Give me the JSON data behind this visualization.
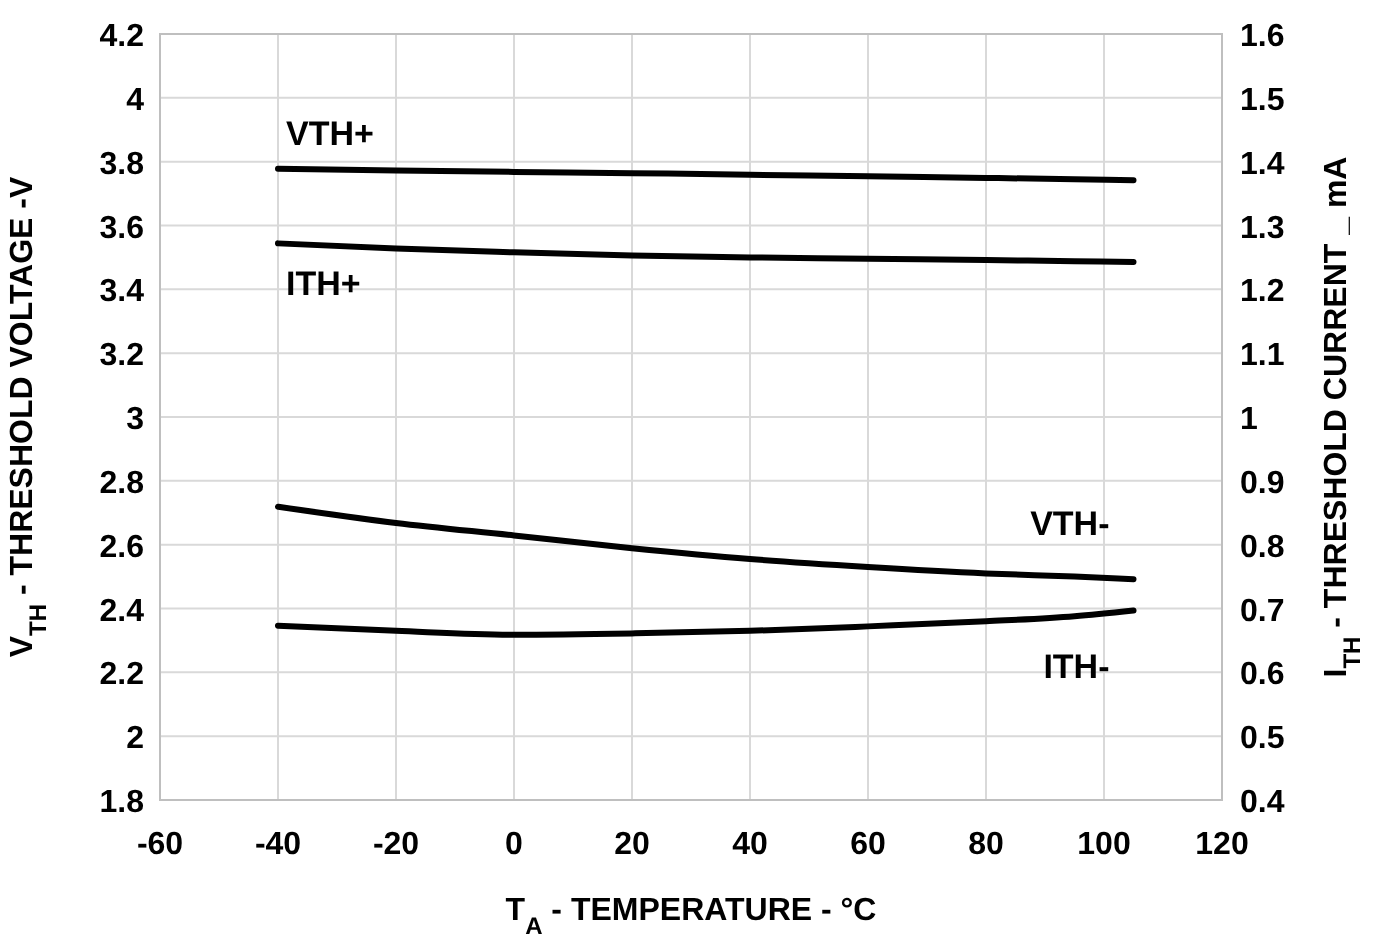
{
  "chart_data": {
    "type": "line",
    "xlabel": "T$_{A}$ - TEMPERATURE - °C",
    "ylabel": "V$_{TH}$ - THRESHOLD VOLTAGE -V",
    "y2label": "I$_{TH}$ - THRESHOLD CURRENT _ mA",
    "x": [
      -40,
      -20,
      0,
      20,
      40,
      60,
      80,
      95,
      105
    ],
    "series": [
      {
        "name": "VTH+",
        "color": "#000000",
        "values": [
          3.778,
          3.772,
          3.768,
          3.764,
          3.759,
          3.754,
          3.749,
          3.745,
          3.742
        ]
      },
      {
        "name": "ITH+",
        "color": "#000000",
        "axis": "y2",
        "values": [
          1.272,
          1.264,
          1.258,
          1.253,
          1.25,
          1.248,
          1.246,
          1.244,
          1.243
        ]
      },
      {
        "name": "VTH-",
        "color": "#000000",
        "values": [
          2.719,
          2.668,
          2.629,
          2.589,
          2.555,
          2.53,
          2.51,
          2.5,
          2.492
        ]
      },
      {
        "name": "ITH-",
        "color": "#000000",
        "axis": "y2",
        "values": [
          0.673,
          0.665,
          0.659,
          0.661,
          0.665,
          0.672,
          0.68,
          0.688,
          0.697
        ]
      }
    ],
    "xlim": [
      -60,
      120
    ],
    "xticks": [
      -60,
      -40,
      -20,
      0,
      20,
      40,
      60,
      80,
      100,
      120
    ],
    "ylim": [
      1.8,
      4.2
    ],
    "yticks": [
      1.8,
      2,
      2.2,
      2.4,
      2.6,
      2.8,
      3,
      3.2,
      3.4,
      3.6,
      3.8,
      4,
      4.2
    ],
    "y2lim": [
      0.4,
      1.6
    ],
    "y2ticks": [
      0.4,
      0.5,
      0.6,
      0.7,
      0.8,
      0.9,
      1,
      1.1,
      1.2,
      1.3,
      1.4,
      1.5,
      1.6
    ],
    "grid": true,
    "marker": "none",
    "line_style": "solid"
  }
}
